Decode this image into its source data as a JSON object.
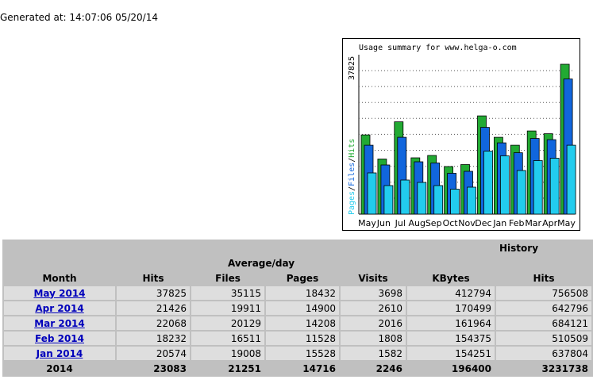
{
  "generated": "Generated at: 14:07:06 05/20/14",
  "chart_data": {
    "type": "bar",
    "title": "Usage summary for www.helga-o.com",
    "ylabel_parts": [
      "Pages",
      "/",
      "Files",
      "/",
      "Hits"
    ],
    "y_max_label": "37825",
    "ymax": 37825,
    "categories": [
      "May",
      "Jun",
      "Jul",
      "Aug",
      "Sep",
      "Oct",
      "Nov",
      "Dec",
      "Jan",
      "Feb",
      "Mar",
      "Apr",
      "May"
    ],
    "series": [
      {
        "name": "Hits",
        "color": "#22aa33",
        "values": [
          20000,
          13900,
          23300,
          14200,
          14800,
          12000,
          12500,
          24800,
          19400,
          17400,
          21000,
          20300,
          37825
        ]
      },
      {
        "name": "Files",
        "color": "#1166dd",
        "values": [
          17400,
          12400,
          19400,
          13200,
          12900,
          10300,
          10800,
          21900,
          18000,
          15500,
          19100,
          18800,
          34100
        ]
      },
      {
        "name": "Pages",
        "color": "#22ccee",
        "values": [
          10400,
          7200,
          8600,
          8000,
          7200,
          6300,
          6800,
          15900,
          14700,
          11000,
          13500,
          14100,
          17400
        ]
      }
    ]
  },
  "table": {
    "title": "History",
    "avg_label": "Average/day",
    "headers": {
      "month": "Month",
      "hits": "Hits",
      "files": "Files",
      "pages": "Pages",
      "visits": "Visits",
      "kbytes": "KBytes",
      "total_hits": "Hits"
    },
    "rows": [
      {
        "month": "May 2014",
        "hits": "37825",
        "files": "35115",
        "pages": "18432",
        "visits": "3698",
        "kbytes": "412794",
        "total_hits": "756508"
      },
      {
        "month": "Apr 2014",
        "hits": "21426",
        "files": "19911",
        "pages": "14900",
        "visits": "2610",
        "kbytes": "170499",
        "total_hits": "642796"
      },
      {
        "month": "Mar 2014",
        "hits": "22068",
        "files": "20129",
        "pages": "14208",
        "visits": "2016",
        "kbytes": "161964",
        "total_hits": "684121"
      },
      {
        "month": "Feb 2014",
        "hits": "18232",
        "files": "16511",
        "pages": "11528",
        "visits": "1808",
        "kbytes": "154375",
        "total_hits": "510509"
      },
      {
        "month": "Jan 2014",
        "hits": "20574",
        "files": "19008",
        "pages": "15528",
        "visits": "1582",
        "kbytes": "154251",
        "total_hits": "637804"
      }
    ],
    "total": {
      "month": "2014",
      "hits": "23083",
      "files": "21251",
      "pages": "14716",
      "visits": "2246",
      "kbytes": "196400",
      "total_hits": "3231738"
    }
  }
}
